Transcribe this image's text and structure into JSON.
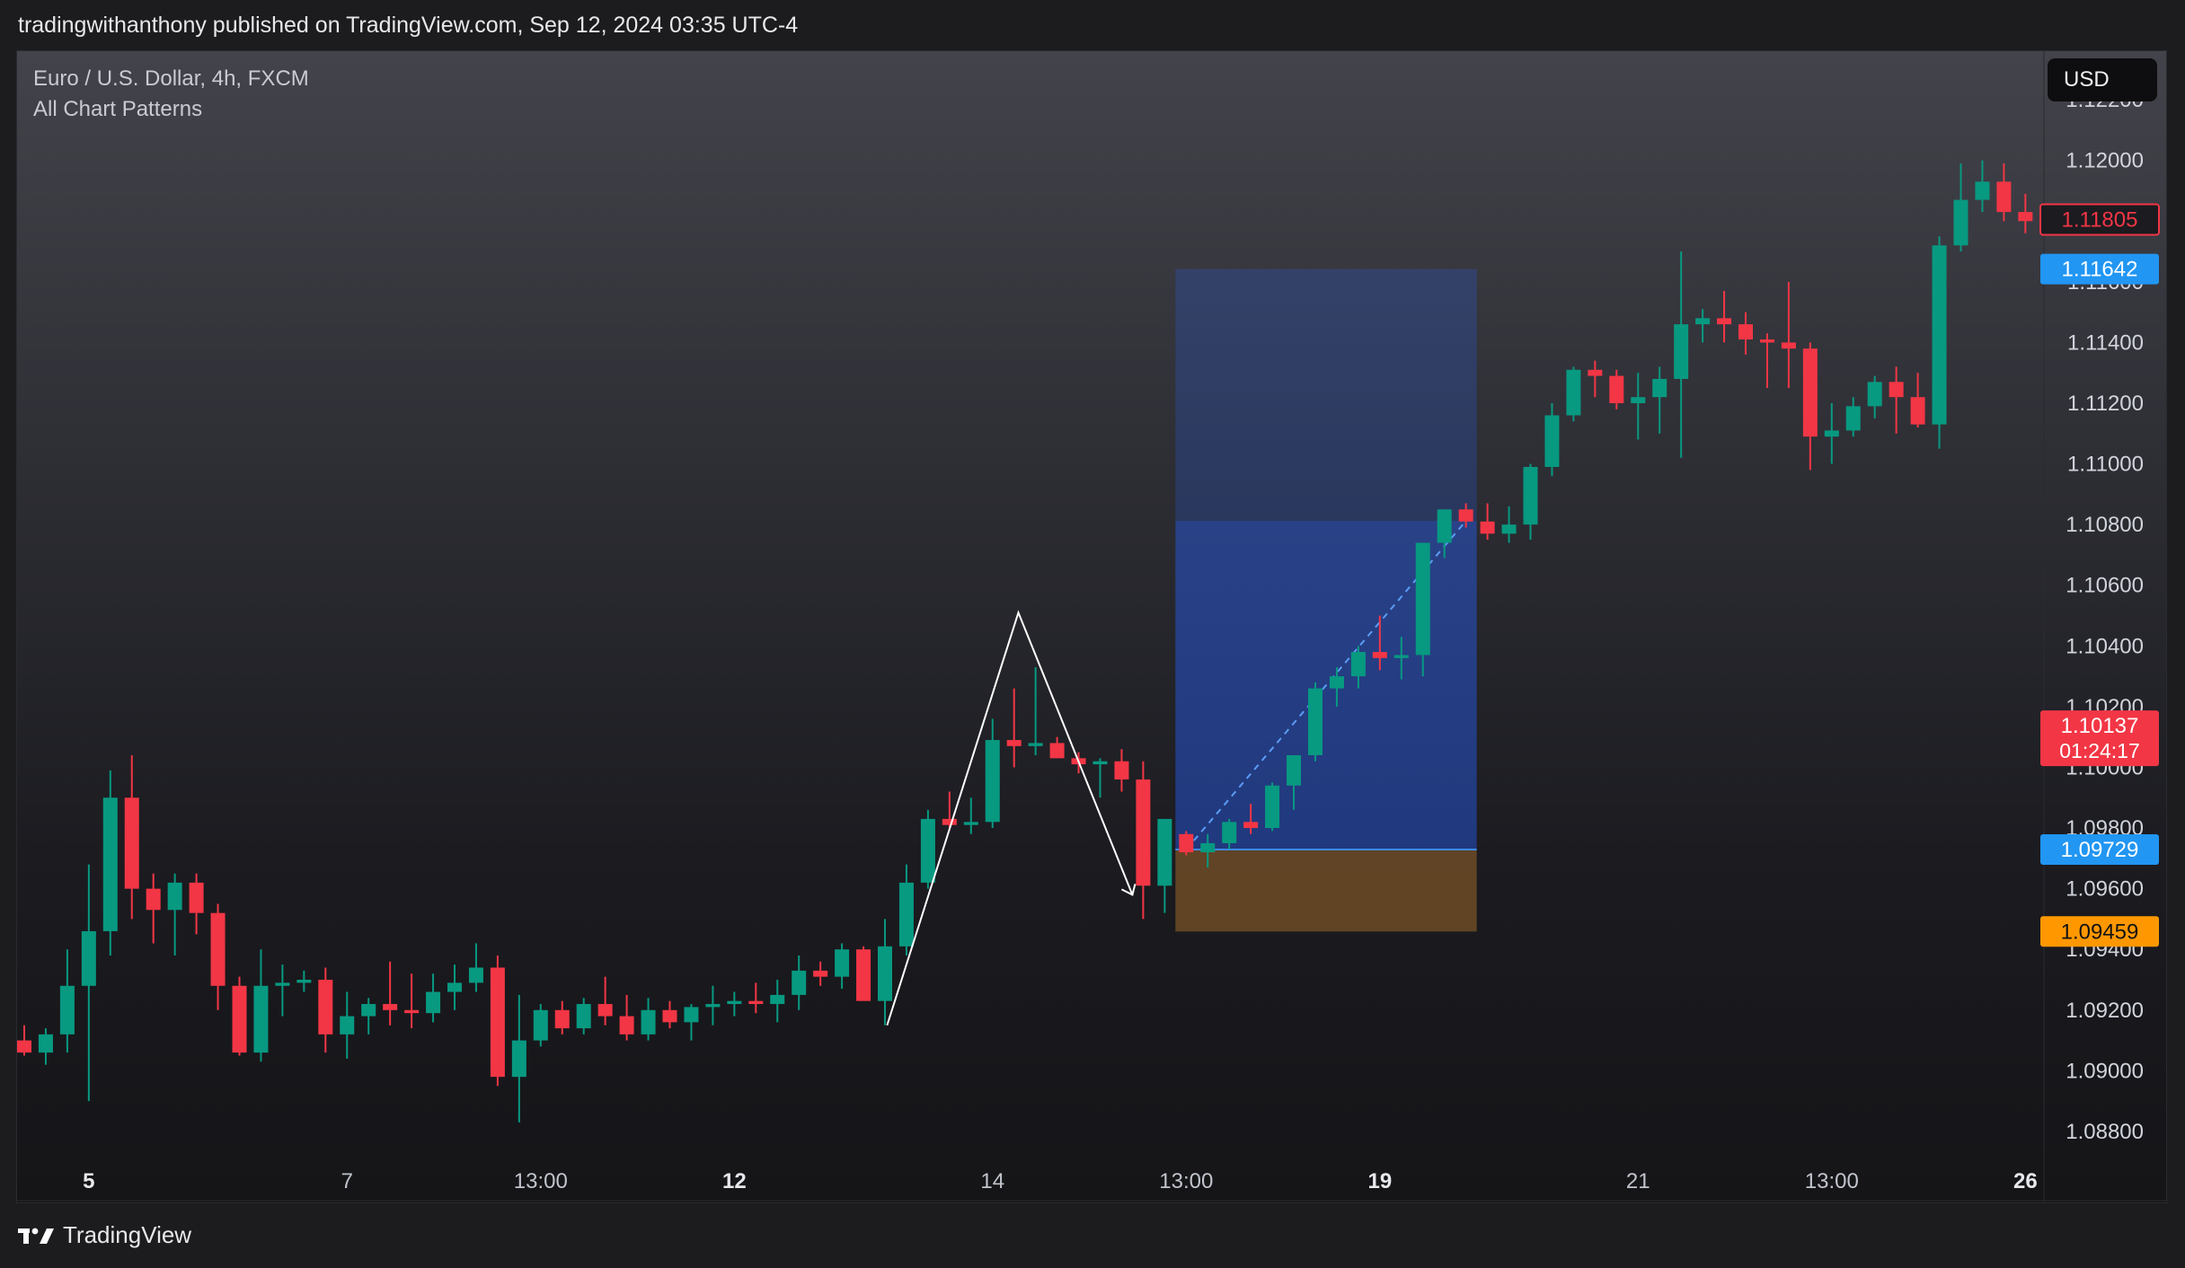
{
  "header": {
    "published": "tradingwithanthony published on TradingView.com, Sep 12, 2024 03:35 UTC-4"
  },
  "legend": {
    "symbol_line": "Euro / U.S. Dollar, 4h, FXCM",
    "indicator": "All Chart Patterns"
  },
  "currency_button": "USD",
  "footer": {
    "brand": "TradingView",
    "brand_icon": "tradingview-logo-icon"
  },
  "colors": {
    "up": "#089981",
    "down": "#f23645",
    "target_zone": "#2962ff",
    "stop_zone": "#a56d2a",
    "pattern_line": "#ffffff"
  },
  "chart_data": {
    "type": "candlestick",
    "symbol": "EUR/USD",
    "timeframe": "4h",
    "ylim": [
      1.0872,
      1.1236
    ],
    "y_ticks": [
      "1.12200",
      "1.12000",
      "1.11800",
      "1.11600",
      "1.11400",
      "1.11200",
      "1.11000",
      "1.10800",
      "1.10600",
      "1.10400",
      "1.10200",
      "1.10000",
      "1.09800",
      "1.09600",
      "1.09400",
      "1.09200",
      "1.09000",
      "1.08800"
    ],
    "x_ticks": [
      {
        "label": "5",
        "index": 3,
        "bold": true
      },
      {
        "label": "7",
        "index": 15,
        "bold": false
      },
      {
        "label": "13:00",
        "index": 24,
        "bold": false
      },
      {
        "label": "12",
        "index": 33,
        "bold": true
      },
      {
        "label": "14",
        "index": 45,
        "bold": false
      },
      {
        "label": "13:00",
        "index": 54,
        "bold": false
      },
      {
        "label": "19",
        "index": 63,
        "bold": true
      },
      {
        "label": "21",
        "index": 75,
        "bold": false
      },
      {
        "label": "13:00",
        "index": 84,
        "bold": false
      },
      {
        "label": "26",
        "index": 93,
        "bold": true
      }
    ],
    "candles": [
      [
        1.091,
        1.0915,
        1.0905,
        1.0906
      ],
      [
        1.0906,
        1.0914,
        1.0902,
        1.0912
      ],
      [
        1.0912,
        1.094,
        1.0906,
        1.0928
      ],
      [
        1.0928,
        1.0968,
        1.089,
        1.0946
      ],
      [
        1.0946,
        1.0999,
        1.0938,
        1.099
      ],
      [
        1.099,
        1.1004,
        1.095,
        1.096
      ],
      [
        1.096,
        1.0965,
        1.0942,
        1.0953
      ],
      [
        1.0953,
        1.0965,
        1.0938,
        1.0962
      ],
      [
        1.0962,
        1.0965,
        1.0945,
        1.0952
      ],
      [
        1.0952,
        1.0955,
        1.092,
        1.0928
      ],
      [
        1.0928,
        1.0931,
        1.0905,
        1.0906
      ],
      [
        1.0906,
        1.094,
        1.0903,
        1.0928
      ],
      [
        1.0928,
        1.0935,
        1.0918,
        1.0929
      ],
      [
        1.0929,
        1.0933,
        1.0926,
        1.093
      ],
      [
        1.093,
        1.0934,
        1.0906,
        1.0912
      ],
      [
        1.0912,
        1.0926,
        1.0904,
        1.0918
      ],
      [
        1.0918,
        1.0924,
        1.0912,
        1.0922
      ],
      [
        1.0922,
        1.0936,
        1.0915,
        1.092
      ],
      [
        1.092,
        1.0932,
        1.0914,
        1.0919
      ],
      [
        1.0919,
        1.0932,
        1.0916,
        1.0926
      ],
      [
        1.0926,
        1.0935,
        1.092,
        1.0929
      ],
      [
        1.0929,
        1.0942,
        1.0926,
        1.0934
      ],
      [
        1.0934,
        1.0938,
        1.0895,
        1.0898
      ],
      [
        1.0898,
        1.0925,
        1.0883,
        1.091
      ],
      [
        1.091,
        1.0922,
        1.0908,
        1.092
      ],
      [
        1.092,
        1.0923,
        1.0912,
        1.0914
      ],
      [
        1.0914,
        1.0924,
        1.0912,
        1.0922
      ],
      [
        1.0922,
        1.0931,
        1.0915,
        1.0918
      ],
      [
        1.0918,
        1.0925,
        1.091,
        1.0912
      ],
      [
        1.0912,
        1.0924,
        1.091,
        1.092
      ],
      [
        1.092,
        1.0923,
        1.0914,
        1.0916
      ],
      [
        1.0916,
        1.0922,
        1.091,
        1.0921
      ],
      [
        1.0921,
        1.0928,
        1.0915,
        1.0922
      ],
      [
        1.0922,
        1.0926,
        1.0918,
        1.0923
      ],
      [
        1.0923,
        1.0929,
        1.0919,
        1.0922
      ],
      [
        1.0922,
        1.093,
        1.0916,
        1.0925
      ],
      [
        1.0925,
        1.0938,
        1.092,
        1.0933
      ],
      [
        1.0933,
        1.0936,
        1.0928,
        1.0931
      ],
      [
        1.0931,
        1.0942,
        1.0927,
        1.094
      ],
      [
        1.094,
        1.0941,
        1.0925,
        1.0923
      ],
      [
        1.0923,
        1.095,
        1.0915,
        1.0941
      ],
      [
        1.0941,
        1.0968,
        1.0938,
        1.0962
      ],
      [
        1.0962,
        1.0986,
        1.096,
        1.0983
      ],
      [
        1.0983,
        1.0992,
        1.098,
        1.0981
      ],
      [
        1.0981,
        1.099,
        1.0978,
        1.0982
      ],
      [
        1.0982,
        1.1016,
        1.098,
        1.1009
      ],
      [
        1.1009,
        1.1026,
        1.1,
        1.1007
      ],
      [
        1.1007,
        1.1033,
        1.1004,
        1.1008
      ],
      [
        1.1008,
        1.101,
        1.1003,
        1.1003
      ],
      [
        1.1003,
        1.1005,
        1.0998,
        1.1001
      ],
      [
        1.1001,
        1.1003,
        1.099,
        1.1002
      ],
      [
        1.1002,
        1.1006,
        1.0992,
        1.0996
      ],
      [
        1.0996,
        1.1002,
        1.095,
        1.0961
      ],
      [
        1.0961,
        1.0982,
        1.0952,
        1.0983
      ],
      [
        1.0978,
        1.0979,
        1.0971,
        1.0972
      ],
      [
        1.0972,
        1.0978,
        1.0967,
        1.0975
      ],
      [
        1.0975,
        1.0983,
        1.0973,
        1.0982
      ],
      [
        1.0982,
        1.0988,
        1.0978,
        1.098
      ],
      [
        1.098,
        1.0995,
        1.0979,
        1.0994
      ],
      [
        1.0994,
        1.1004,
        1.0986,
        1.1004
      ],
      [
        1.1004,
        1.1028,
        1.1002,
        1.1026
      ],
      [
        1.1026,
        1.1033,
        1.102,
        1.103
      ],
      [
        1.103,
        1.104,
        1.1026,
        1.1038
      ],
      [
        1.1038,
        1.105,
        1.1032,
        1.1036
      ],
      [
        1.1036,
        1.1043,
        1.1029,
        1.1037
      ],
      [
        1.1037,
        1.1074,
        1.103,
        1.1074
      ],
      [
        1.1074,
        1.1085,
        1.1069,
        1.1085
      ],
      [
        1.1085,
        1.1087,
        1.1079,
        1.1081
      ],
      [
        1.1081,
        1.1087,
        1.1075,
        1.1077
      ],
      [
        1.1077,
        1.1086,
        1.1074,
        1.108
      ],
      [
        1.108,
        1.11,
        1.1075,
        1.1099
      ],
      [
        1.1099,
        1.112,
        1.1096,
        1.1116
      ],
      [
        1.1116,
        1.1132,
        1.1114,
        1.1131
      ],
      [
        1.1131,
        1.1134,
        1.1122,
        1.1129
      ],
      [
        1.1129,
        1.1131,
        1.1118,
        1.112
      ],
      [
        1.112,
        1.113,
        1.1108,
        1.1122
      ],
      [
        1.1122,
        1.1132,
        1.111,
        1.1128
      ],
      [
        1.1128,
        1.117,
        1.1102,
        1.1146
      ],
      [
        1.1146,
        1.1151,
        1.114,
        1.1148
      ],
      [
        1.1148,
        1.1157,
        1.114,
        1.1146
      ],
      [
        1.1146,
        1.115,
        1.1136,
        1.1141
      ],
      [
        1.1141,
        1.1143,
        1.1125,
        1.114
      ],
      [
        1.114,
        1.116,
        1.1125,
        1.1138
      ],
      [
        1.1138,
        1.114,
        1.1098,
        1.1109
      ],
      [
        1.1109,
        1.112,
        1.11,
        1.1111
      ],
      [
        1.1111,
        1.1122,
        1.1109,
        1.1119
      ],
      [
        1.1119,
        1.1129,
        1.1115,
        1.1127
      ],
      [
        1.1127,
        1.1132,
        1.111,
        1.1122
      ],
      [
        1.1122,
        1.113,
        1.1112,
        1.1113
      ],
      [
        1.1113,
        1.1175,
        1.1105,
        1.1172
      ],
      [
        1.1172,
        1.1199,
        1.117,
        1.1187
      ],
      [
        1.1187,
        1.12,
        1.1183,
        1.1193
      ],
      [
        1.1193,
        1.1199,
        1.118,
        1.1183
      ],
      [
        1.1183,
        1.1189,
        1.1176,
        1.118
      ]
    ],
    "price_labels": [
      {
        "label": "1.11805",
        "value": 1.11805,
        "style": "outline-red"
      },
      {
        "label": "1.11642",
        "value": 1.11642,
        "style": "blue"
      },
      {
        "label": "1.10137",
        "sub": "01:24:17",
        "value": 1.10137,
        "style": "red"
      },
      {
        "label": "1.09729",
        "value": 1.09729,
        "style": "blue"
      },
      {
        "label": "1.09459",
        "value": 1.09459,
        "style": "orange"
      }
    ],
    "position": {
      "type": "long",
      "start_index": 54,
      "end_index": 67,
      "entry": 1.09729,
      "target": 1.11642,
      "stop": 1.09459,
      "current": 1.10812
    },
    "pattern_path": [
      {
        "index": 40.1,
        "price": 1.0915
      },
      {
        "index": 46.2,
        "price": 1.1051
      },
      {
        "index": 51.5,
        "price": 1.0958
      }
    ]
  }
}
